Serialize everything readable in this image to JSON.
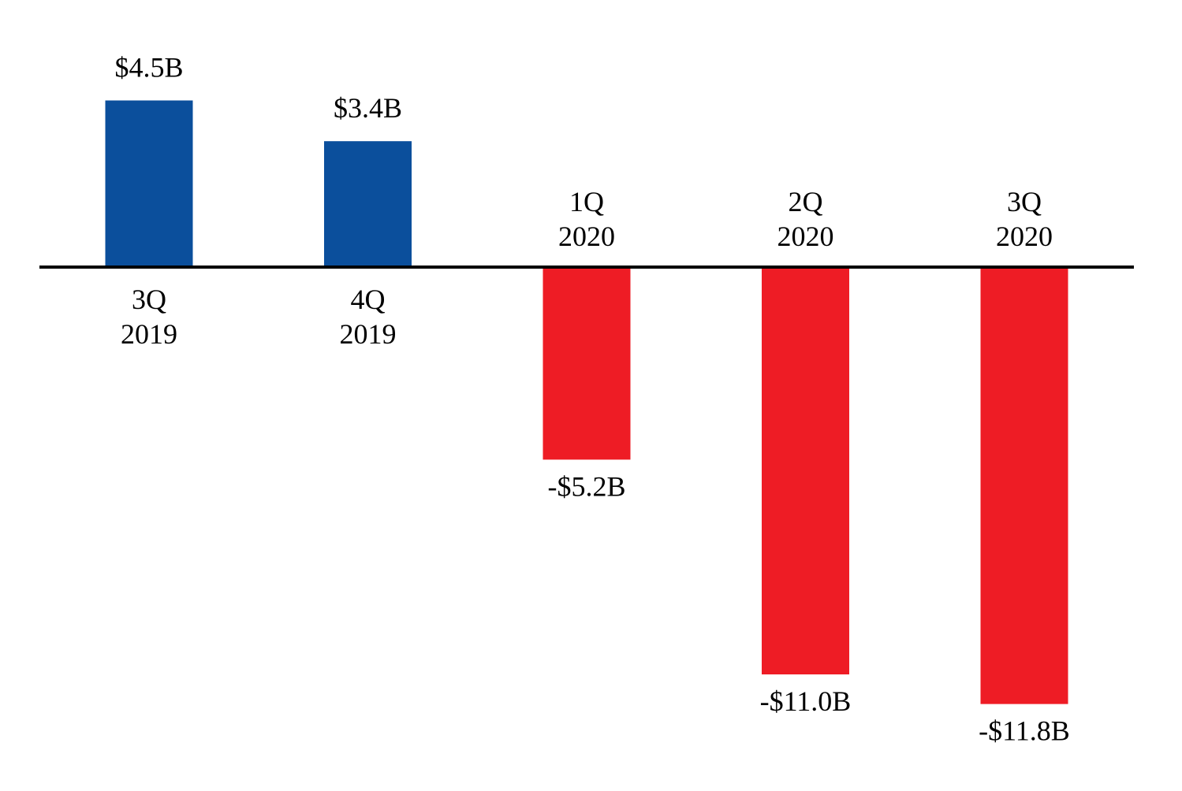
{
  "chart_data": {
    "type": "bar",
    "title": "",
    "xlabel": "",
    "ylabel": "",
    "unit": "$B",
    "categories": [
      {
        "q": "3Q",
        "year": "2019"
      },
      {
        "q": "4Q",
        "year": "2019"
      },
      {
        "q": "1Q",
        "year": "2020"
      },
      {
        "q": "2Q",
        "year": "2020"
      },
      {
        "q": "3Q",
        "year": "2020"
      }
    ],
    "values": [
      4.5,
      3.4,
      -5.2,
      -11.0,
      -11.8
    ],
    "value_labels": [
      "$4.5B",
      "$3.4B",
      "-$5.2B",
      "-$11.0B",
      "-$11.8B"
    ],
    "ylim": [
      -11.8,
      4.5
    ],
    "grid": false,
    "legend": "none",
    "colors": {
      "positive": "#0b4f9c",
      "negative": "#ee1c25",
      "axis": "#000000"
    }
  }
}
